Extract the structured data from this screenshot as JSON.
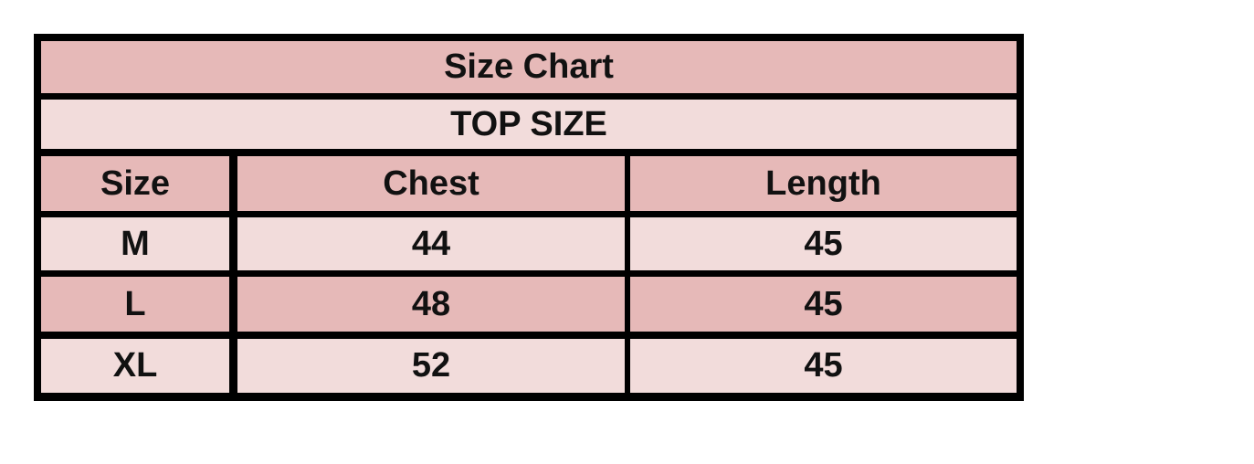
{
  "title": "Size Chart",
  "subtitle": "TOP SIZE",
  "headers": [
    "Size",
    "Chest",
    "Length"
  ],
  "rows": [
    [
      "M",
      "44",
      "45"
    ],
    [
      "L",
      "48",
      "45"
    ],
    [
      "XL",
      "52",
      "45"
    ]
  ],
  "colors": {
    "dark_row": "#e6b9b8",
    "light_row": "#f2dcdb",
    "border": "#000000"
  }
}
